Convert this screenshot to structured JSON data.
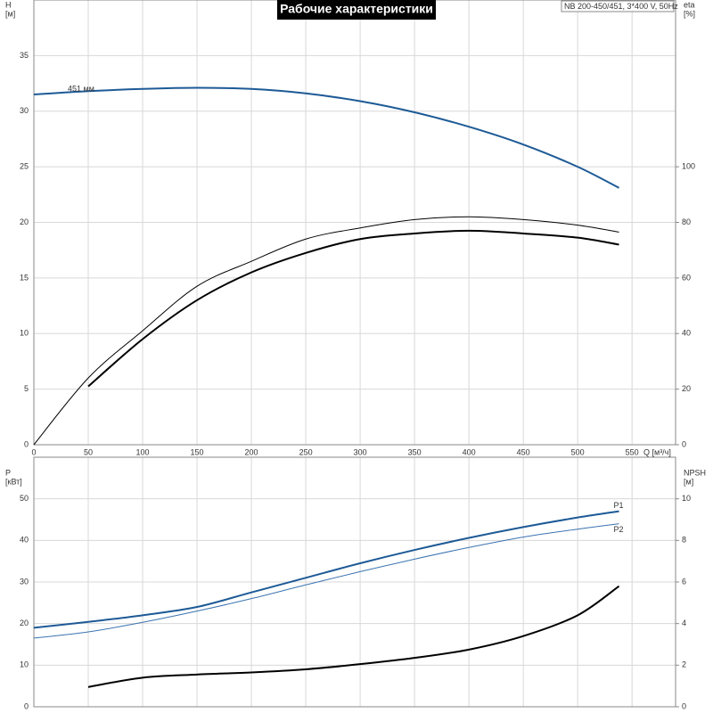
{
  "chart_data": [
    {
      "type": "line",
      "title": "Рабочие характеристики",
      "annotation": "NB 200-450/451, 3*400 V, 50Hz",
      "ylabel": "H",
      "yunit": "[м]",
      "y2label": "eta",
      "y2unit": "[%]",
      "xlabel": "Q [м³/ч]",
      "x": [
        0,
        50,
        100,
        150,
        200,
        250,
        300,
        350,
        400,
        450,
        500,
        538
      ],
      "xlim": [
        0,
        590
      ],
      "xticks": [
        0,
        50,
        100,
        150,
        200,
        250,
        300,
        350,
        400,
        450,
        500,
        550
      ],
      "ylim": [
        0,
        40
      ],
      "yticks": [
        0,
        5,
        10,
        15,
        20,
        25,
        30,
        35
      ],
      "y2lim": [
        0,
        160
      ],
      "y2ticks": [
        0,
        20,
        40,
        60,
        80,
        100
      ],
      "grid": true,
      "series": [
        {
          "name": "451 мм",
          "color": "#1d5a96",
          "line_width": 2,
          "values": [
            31.5,
            31.8,
            32.0,
            32.1,
            32.0,
            31.6,
            30.9,
            29.9,
            28.6,
            27.0,
            25.0,
            23.1
          ]
        },
        {
          "color": "#000000",
          "line_width": 1,
          "axis": "y2",
          "values": [
            0,
            24,
            41,
            57,
            66,
            74,
            78,
            81,
            82,
            81,
            79,
            76.5
          ]
        },
        {
          "color": "#000000",
          "line_width": 2,
          "axis": "y2",
          "values": [
            null,
            21,
            38,
            52,
            62,
            69,
            74,
            76,
            77,
            76,
            74.5,
            72
          ]
        }
      ]
    },
    {
      "type": "line",
      "ylabel": "P",
      "yunit": "[кВт]",
      "y2label": "NPSH",
      "y2unit": "[м]",
      "x": [
        0,
        50,
        100,
        150,
        200,
        250,
        300,
        350,
        400,
        450,
        500,
        538
      ],
      "xlim": [
        0,
        590
      ],
      "ylim": [
        0,
        60
      ],
      "yticks": [
        0,
        10,
        20,
        30,
        40,
        50
      ],
      "y2lim": [
        0,
        12
      ],
      "y2ticks": [
        0,
        2,
        4,
        6,
        8,
        10
      ],
      "grid": true,
      "series": [
        {
          "name": "P1",
          "color": "#1d5a96",
          "line_width": 2,
          "values": [
            19,
            20.4,
            22,
            24,
            27.5,
            31,
            34.5,
            37.7,
            40.6,
            43.2,
            45.5,
            47
          ]
        },
        {
          "name": "P2",
          "color": "#3a73b0",
          "line_width": 1,
          "values": [
            16.5,
            18,
            20.3,
            23,
            26,
            29.3,
            32.5,
            35.5,
            38.3,
            40.8,
            42.7,
            44
          ]
        },
        {
          "color": "#000000",
          "line_width": 2,
          "axis": "y2",
          "values": [
            null,
            0.95,
            1.4,
            1.55,
            1.65,
            1.8,
            2.05,
            2.35,
            2.75,
            3.4,
            4.4,
            5.8
          ]
        }
      ]
    }
  ]
}
